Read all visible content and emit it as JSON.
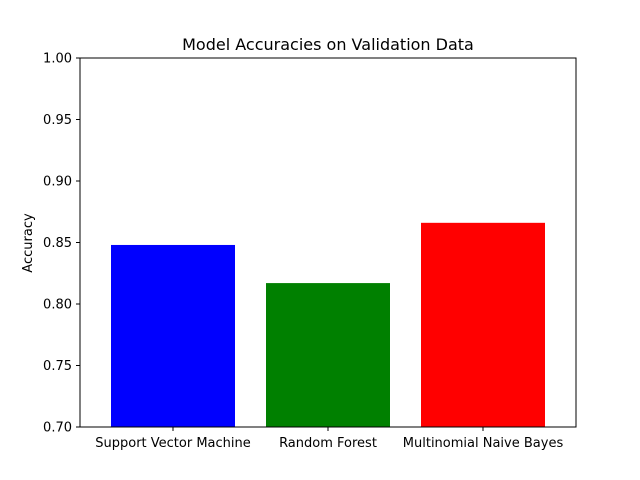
{
  "chart_data": {
    "type": "bar",
    "title": "Model Accuracies on Validation Data",
    "xlabel": "",
    "ylabel": "Accuracy",
    "categories": [
      "Support Vector Machine",
      "Random Forest",
      "Multinomial Naive Bayes"
    ],
    "values": [
      0.848,
      0.817,
      0.866
    ],
    "colors": [
      "#0000ff",
      "#008000",
      "#ff0000"
    ],
    "ylim": [
      0.7,
      1.0
    ],
    "yticks": [
      0.7,
      0.75,
      0.8,
      0.85,
      0.9,
      0.95,
      1.0
    ],
    "ytick_labels": [
      "0.70",
      "0.75",
      "0.80",
      "0.85",
      "0.90",
      "0.95",
      "1.00"
    ],
    "grid": false,
    "legend": "none"
  }
}
